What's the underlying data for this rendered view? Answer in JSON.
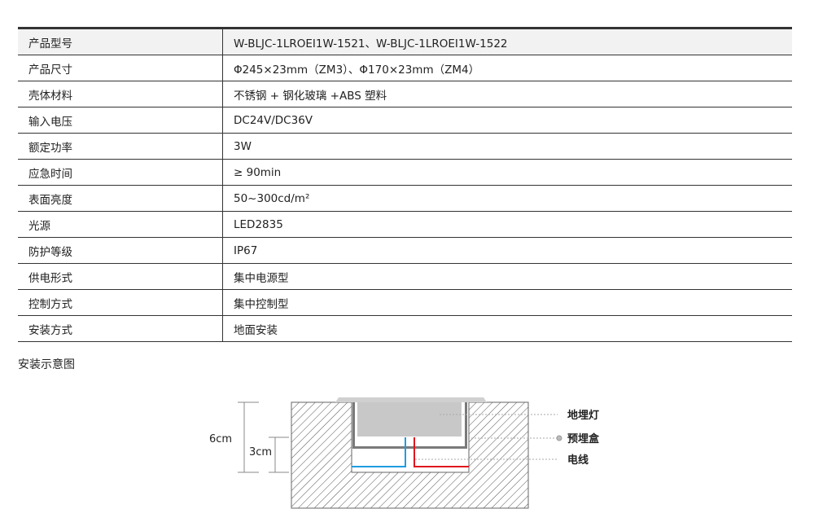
{
  "specs": [
    {
      "label": "产品型号",
      "value": "W-BLJC-1LROEI1W-1521、W-BLJC-1LROEI1W-1522"
    },
    {
      "label": "产品尺寸",
      "value": "Φ245×23mm（ZM3）、Φ170×23mm（ZM4）"
    },
    {
      "label": "壳体材料",
      "value": "不锈钢 + 钢化玻璃 +ABS 塑料"
    },
    {
      "label": "输入电压",
      "value": "DC24V/DC36V"
    },
    {
      "label": "额定功率",
      "value": "3W"
    },
    {
      "label": "应急时间",
      "value": "≥ 90min"
    },
    {
      "label": "表面亮度",
      "value": "50~300cd/m²"
    },
    {
      "label": "光源",
      "value": "LED2835"
    },
    {
      "label": "防护等级",
      "value": "IP67"
    },
    {
      "label": "供电形式",
      "value": "集中电源型"
    },
    {
      "label": "控制方式",
      "value": "集中控制型"
    },
    {
      "label": "安装方式",
      "value": "地面安装"
    }
  ],
  "diagram": {
    "title": "安装示意图",
    "dim_total": "6cm",
    "dim_half": "3cm",
    "labels": {
      "lamp": "地埋灯",
      "box": "预埋盒",
      "wire": "电线"
    },
    "colors": {
      "blue_wire": "#1e9be0",
      "red_wire": "#e0141e",
      "lamp": "#c8c8c8",
      "box": "#7a7a7a"
    }
  }
}
